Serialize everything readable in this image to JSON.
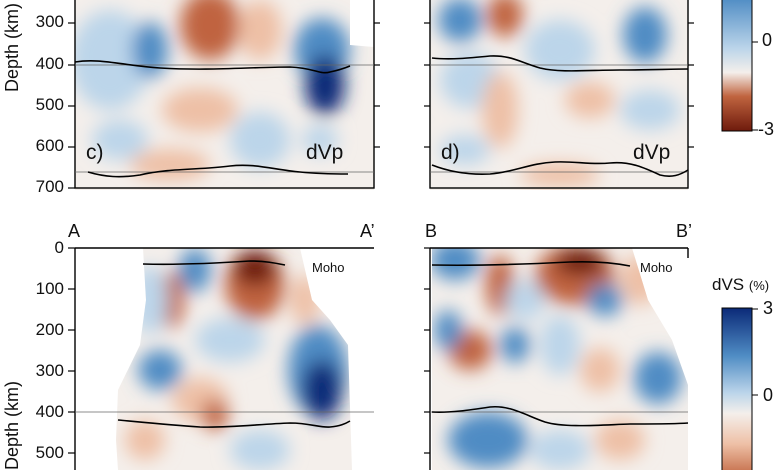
{
  "upper_row": {
    "ylabel": "Depth (km)",
    "depth_ticks": [
      "300",
      "400",
      "500",
      "600",
      "700"
    ],
    "panels": [
      {
        "label": "c)",
        "variable": "dVp"
      },
      {
        "label": "d)",
        "variable": "dVp"
      }
    ],
    "colorbar_ticks": [
      "0",
      "-3"
    ]
  },
  "lower_row": {
    "ylabel": "Depth (km)",
    "depth_ticks": [
      "0",
      "100",
      "200",
      "300",
      "400",
      "500"
    ],
    "sections": [
      {
        "start": "A",
        "end": "A’",
        "moho_label": "Moho"
      },
      {
        "start": "B",
        "end": "B’",
        "moho_label": "Moho"
      }
    ],
    "colorbar_title": "dVS",
    "colorbar_unit": "(%)",
    "colorbar_ticks": [
      "3",
      "0"
    ]
  },
  "colors": {
    "fast_max": "#0b2a78",
    "fast": "#4f8cc4",
    "fast_light": "#bcd5ea",
    "neutral": "#f4efeb",
    "slow_light": "#eec0a6",
    "slow": "#c0643f",
    "slow_max": "#6e1a0c"
  }
}
